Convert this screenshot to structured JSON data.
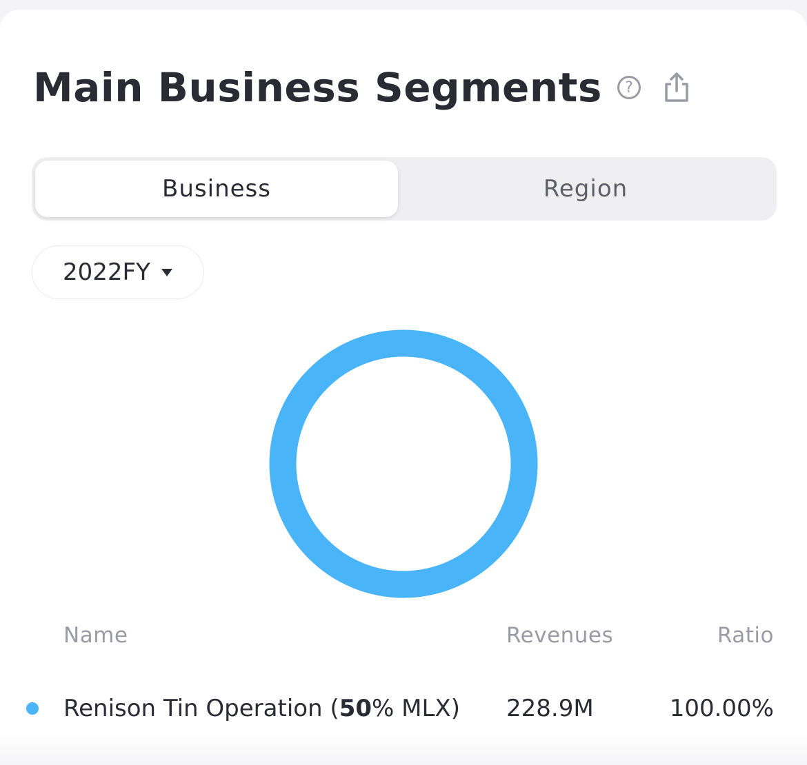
{
  "header": {
    "title": "Main Business Segments",
    "help_icon": "question-circle-icon",
    "share_icon": "share-icon"
  },
  "tabs": [
    {
      "label": "Business",
      "active": true
    },
    {
      "label": "Region",
      "active": false
    }
  ],
  "period_selector": {
    "value": "2022FY",
    "icon": "caret-down-icon"
  },
  "table": {
    "columns": [
      "Name",
      "Revenues",
      "Ratio"
    ],
    "rows": [
      {
        "name_prefix": "Renison Tin Operation (",
        "name_bold": "50",
        "name_suffix": "% MLX)",
        "revenues": "228.9M",
        "ratio": "100.00%",
        "color": "#4ab4f8"
      }
    ]
  },
  "chart_data": {
    "type": "pie",
    "categories": [
      "Renison Tin Operation (50% MLX)"
    ],
    "values": [
      100.0
    ],
    "colors": [
      "#4ab4f8"
    ],
    "title": "",
    "legend": "none"
  }
}
